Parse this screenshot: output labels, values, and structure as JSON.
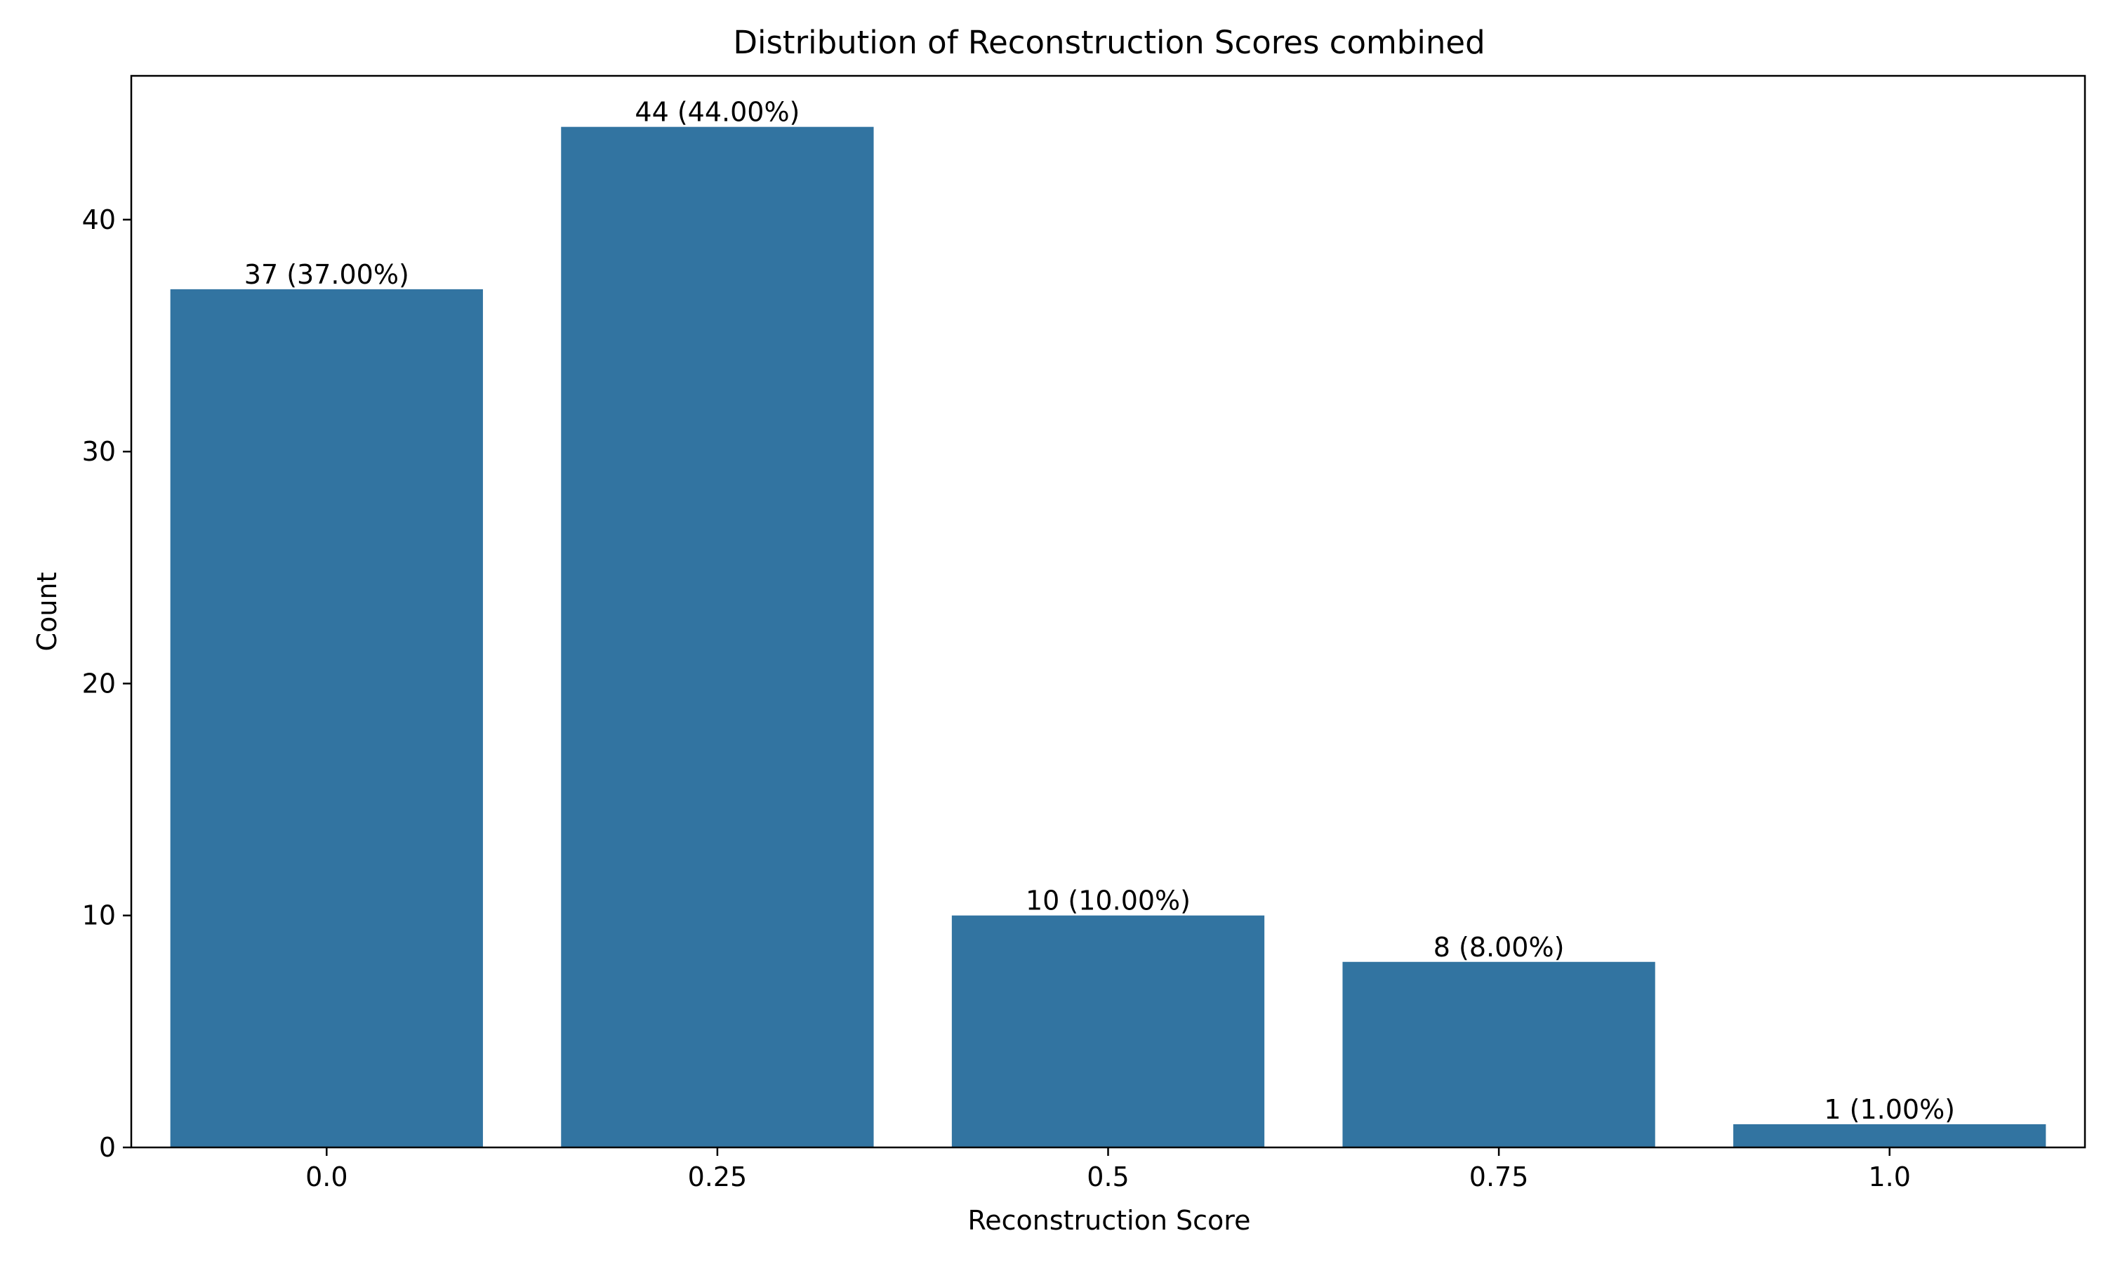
{
  "chart_data": {
    "type": "bar",
    "title": "Distribution of Reconstruction Scores combined",
    "xlabel": "Reconstruction Score",
    "ylabel": "Count",
    "categories": [
      "0.0",
      "0.25",
      "0.5",
      "0.75",
      "1.0"
    ],
    "values": [
      37,
      44,
      10,
      8,
      1
    ],
    "data_labels": [
      "37 (37.00%)",
      "44 (44.00%)",
      "10 (10.00%)",
      "8 (8.00%)",
      "1 (1.00%)"
    ],
    "ylim": [
      0,
      46.2
    ],
    "yticks": [
      0,
      10,
      20,
      30,
      40
    ],
    "grid": false,
    "legend": "none",
    "bar_color": "#3274a1"
  }
}
